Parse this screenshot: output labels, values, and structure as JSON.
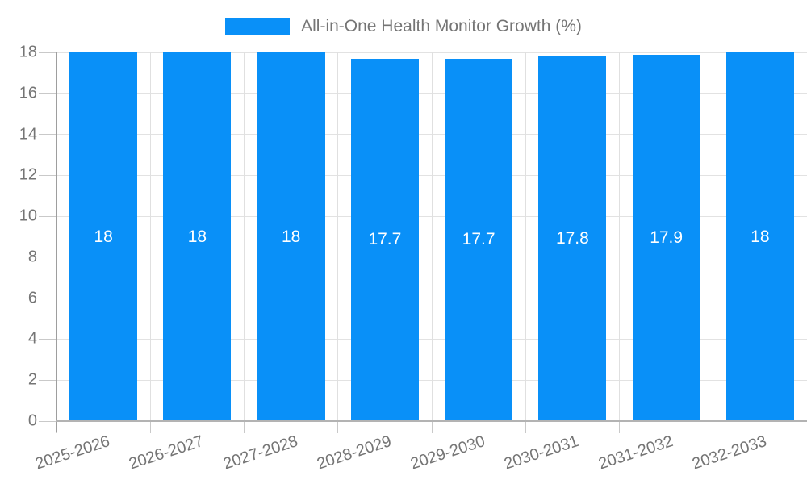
{
  "legend": {
    "label": "All-in-One Health Monitor Growth (%)"
  },
  "colors": {
    "bar": "#0990f8",
    "grid_h": "#e2e2e2",
    "grid_v": "#e0e0e0",
    "tick": "#c9c9c9",
    "axis_y": "#9e9e9e",
    "axis_x": "#b3b3b3",
    "axis_text": "#757575",
    "bar_label_text": "#ffffff"
  },
  "chart_data": {
    "type": "bar",
    "title": "All-in-One Health Monitor Growth (%)",
    "series": [
      {
        "name": "All-in-One Health Monitor Growth (%)",
        "values": [
          18,
          18,
          18,
          17.7,
          17.7,
          17.8,
          17.9,
          18
        ]
      }
    ],
    "categories": [
      "2025-2026",
      "2026-2027",
      "2027-2028",
      "2028-2029",
      "2029-2030",
      "2030-2031",
      "2031-2032",
      "2032-2033"
    ],
    "bar_labels": [
      "18",
      "18",
      "18",
      "17.7",
      "17.7",
      "17.8",
      "17.9",
      "18"
    ],
    "yticks": [
      0,
      2,
      4,
      6,
      8,
      10,
      12,
      14,
      16,
      18
    ],
    "ylim": [
      0,
      18
    ],
    "xlabel": "",
    "ylabel": "",
    "grid": true,
    "legend_position": "top-center"
  }
}
